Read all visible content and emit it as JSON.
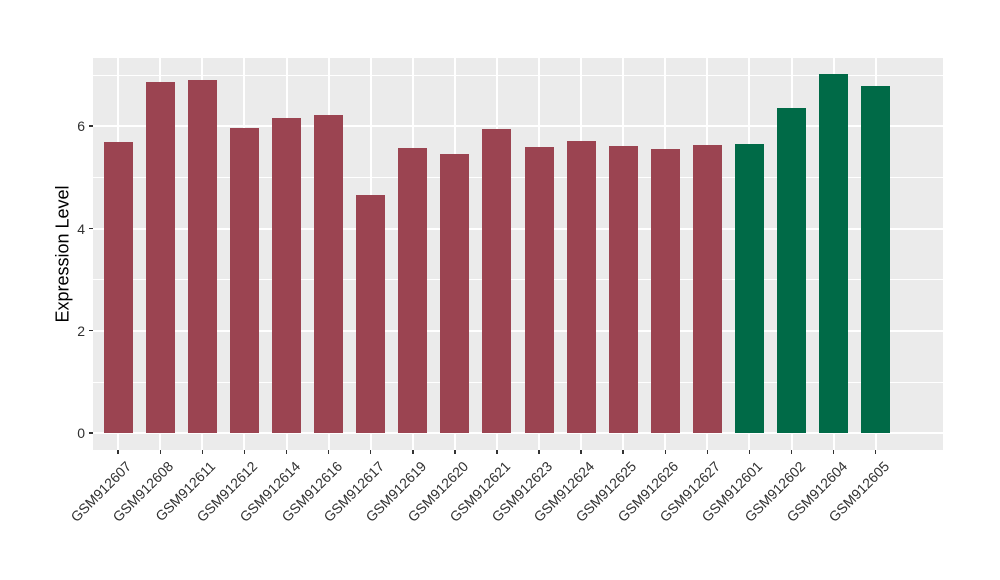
{
  "chart_data": {
    "type": "bar",
    "title": "",
    "xlabel": "",
    "ylabel": "Expression Level",
    "categories": [
      "GSM912607",
      "GSM912608",
      "GSM912611",
      "GSM912612",
      "GSM912614",
      "GSM912616",
      "GSM912617",
      "GSM912619",
      "GSM912620",
      "GSM912621",
      "GSM912623",
      "GSM912624",
      "GSM912625",
      "GSM912626",
      "GSM912627",
      "GSM912601",
      "GSM912602",
      "GSM912604",
      "GSM912605"
    ],
    "values": [
      5.7,
      6.88,
      6.91,
      5.98,
      6.17,
      6.23,
      4.65,
      5.58,
      5.47,
      5.95,
      5.59,
      5.72,
      5.61,
      5.55,
      5.63,
      5.66,
      6.37,
      7.02,
      6.8
    ],
    "bar_colors": [
      "#9B4451",
      "#9B4451",
      "#9B4451",
      "#9B4451",
      "#9B4451",
      "#9B4451",
      "#9B4451",
      "#9B4451",
      "#9B4451",
      "#9B4451",
      "#9B4451",
      "#9B4451",
      "#9B4451",
      "#9B4451",
      "#9B4451",
      "#006A47",
      "#006A47",
      "#006A47",
      "#006A47"
    ],
    "yticks": [
      0,
      2,
      4,
      6
    ],
    "yticks_minor": [
      1,
      3,
      5,
      7
    ],
    "ylim": [
      0,
      7.35
    ],
    "ylim_display": [
      -0.33,
      7.34
    ],
    "x_tick_rotation_deg": 45,
    "grid": true,
    "legend_position": "none",
    "style": {
      "panel_background": "#EBEBEB",
      "grid_major_color": "#FFFFFF",
      "grid_minor_color": "#FFFFFF",
      "red_group_color": "#9B4451",
      "green_group_color": "#006A47",
      "tick_text_color": "#303030",
      "axis_title_color": "#000000"
    }
  }
}
